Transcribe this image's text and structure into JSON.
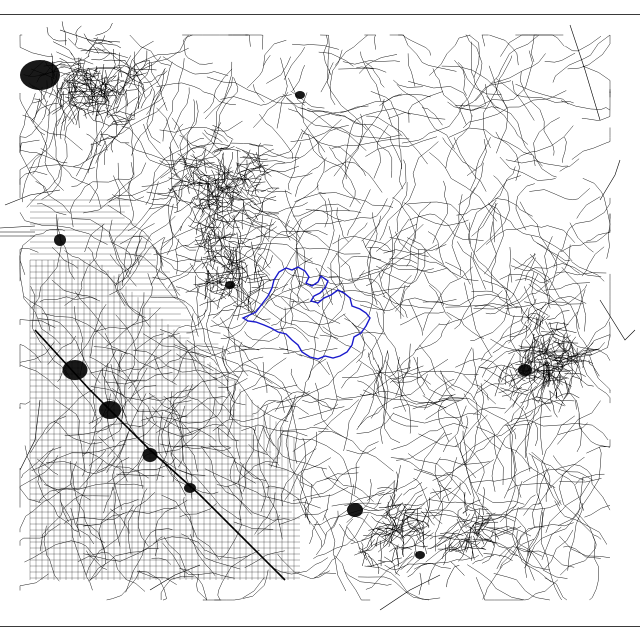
{
  "map": {
    "kind": "road-network",
    "road_color": "#000000",
    "boundary_color": "#1a1acc",
    "background_color": "#ffffff",
    "frame_color": "#3a3a3a"
  }
}
